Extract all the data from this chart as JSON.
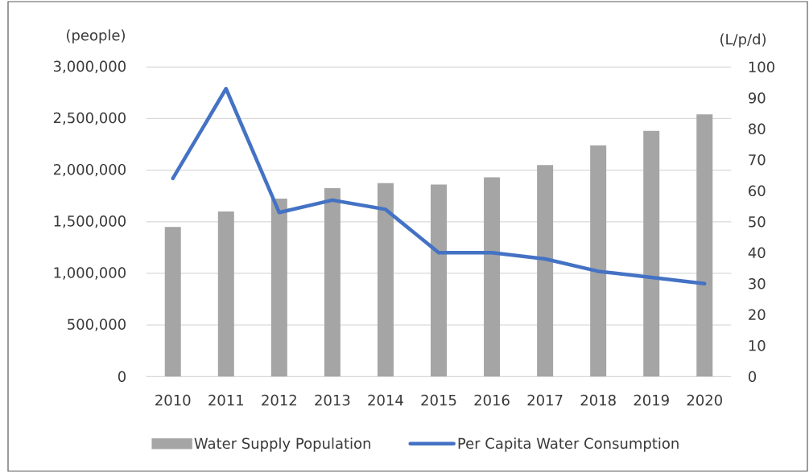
{
  "chart_data": {
    "type": "bar",
    "categories": [
      "2010",
      "2011",
      "2012",
      "2013",
      "2014",
      "2015",
      "2016",
      "2017",
      "2018",
      "2019",
      "2020"
    ],
    "ylabel": "(people)",
    "y2label": "(L/p/d)",
    "series": [
      {
        "name": "Water Supply Population",
        "color": "#a5a5a5",
        "values": [
          1450000,
          1600000,
          1725000,
          1825000,
          1875000,
          1860000,
          1930000,
          2050000,
          2240000,
          2380000,
          2540000
        ]
      },
      {
        "name": "Per Capita Water Consumption",
        "type": "line",
        "axis": "y2",
        "color": "#4472c4",
        "values": [
          64,
          93,
          53,
          57,
          54,
          40,
          40,
          38,
          34,
          32,
          30
        ]
      }
    ],
    "ylim": [
      0,
      3000000
    ],
    "yticks": [
      0,
      {
        "value": 500000,
        "label": "500,000"
      },
      {
        "value": 1000000,
        "label": "1,000,000"
      },
      {
        "value": 1500000,
        "label": "1,500,000"
      },
      {
        "value": 2000000,
        "label": "2,000,000"
      },
      {
        "value": 2500000,
        "label": "2,500,000"
      },
      {
        "value": 3000000,
        "label": "3,000,000"
      }
    ],
    "y2lim": [
      0,
      100
    ],
    "y2ticks": [
      0,
      10,
      20,
      30,
      40,
      50,
      60,
      70,
      80,
      90,
      100
    ],
    "grid": "y",
    "legend": "bottom"
  }
}
